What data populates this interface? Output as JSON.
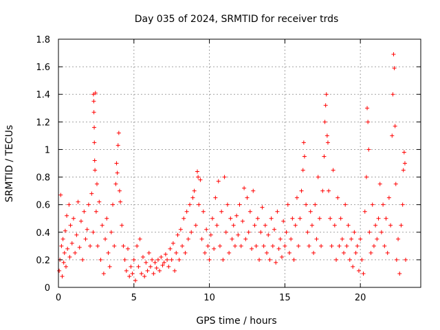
{
  "chart_data": {
    "type": "scatter",
    "title": "Day 035 of 2024, SRMTID for receiver trds",
    "xlabel": "GPS time / hours",
    "ylabel": "SRMTID / TECUs",
    "xlim": [
      0,
      24
    ],
    "ylim": [
      0,
      1.8
    ],
    "x_ticks": [
      0,
      5,
      10,
      15,
      20
    ],
    "x_tick_labels": [
      "0",
      "5",
      "10",
      "15",
      "20"
    ],
    "y_ticks": [
      0,
      0.2,
      0.4,
      0.6,
      0.8,
      1,
      1.2,
      1.4,
      1.6,
      1.8
    ],
    "y_tick_labels": [
      "0",
      "0.2",
      "0.4",
      "0.6",
      "0.8",
      "1",
      "1.2",
      "1.4",
      "1.6",
      "1.8"
    ],
    "grid": true,
    "marker": "+",
    "marker_color": "#ff0000",
    "series": [
      {
        "name": "SRMTID",
        "points": [
          [
            0.05,
            0.12
          ],
          [
            0.1,
            0.2
          ],
          [
            0.15,
            0.67
          ],
          [
            0.2,
            0.3
          ],
          [
            0.25,
            0.08
          ],
          [
            0.3,
            0.35
          ],
          [
            0.35,
            0.18
          ],
          [
            0.4,
            0.25
          ],
          [
            0.45,
            0.41
          ],
          [
            0.5,
            0.15
          ],
          [
            0.55,
            0.52
          ],
          [
            0.6,
            0.28
          ],
          [
            0.7,
            0.6
          ],
          [
            0.75,
            0.22
          ],
          [
            0.8,
            0.45
          ],
          [
            0.9,
            0.32
          ],
          [
            1.0,
            0.5
          ],
          [
            1.1,
            0.25
          ],
          [
            1.2,
            0.38
          ],
          [
            1.3,
            0.62
          ],
          [
            1.4,
            0.29
          ],
          [
            1.5,
            0.48
          ],
          [
            1.6,
            0.2
          ],
          [
            1.7,
            0.55
          ],
          [
            1.8,
            0.35
          ],
          [
            1.9,
            0.42
          ],
          [
            2.0,
            0.6
          ],
          [
            2.1,
            0.3
          ],
          [
            2.2,
            0.68
          ],
          [
            2.3,
            0.4
          ],
          [
            2.32,
            1.4
          ],
          [
            2.34,
            1.35
          ],
          [
            2.35,
            1.27
          ],
          [
            2.37,
            1.16
          ],
          [
            2.38,
            1.05
          ],
          [
            2.4,
            0.92
          ],
          [
            2.42,
            0.85
          ],
          [
            2.45,
            1.41
          ],
          [
            2.5,
            0.55
          ],
          [
            2.55,
            0.75
          ],
          [
            2.6,
            0.3
          ],
          [
            2.7,
            0.62
          ],
          [
            2.8,
            0.2
          ],
          [
            2.9,
            0.45
          ],
          [
            3.0,
            0.1
          ],
          [
            3.1,
            0.35
          ],
          [
            3.2,
            0.5
          ],
          [
            3.3,
            0.25
          ],
          [
            3.4,
            0.15
          ],
          [
            3.5,
            0.4
          ],
          [
            3.6,
            0.6
          ],
          [
            3.7,
            0.3
          ],
          [
            3.8,
            0.75
          ],
          [
            3.85,
            0.9
          ],
          [
            3.9,
            0.83
          ],
          [
            3.95,
            1.03
          ],
          [
            4.0,
            1.12
          ],
          [
            4.05,
            0.7
          ],
          [
            4.1,
            0.62
          ],
          [
            4.2,
            0.45
          ],
          [
            4.3,
            0.3
          ],
          [
            4.4,
            0.2
          ],
          [
            4.5,
            0.12
          ],
          [
            4.6,
            0.28
          ],
          [
            4.7,
            0.08
          ],
          [
            4.8,
            0.15
          ],
          [
            4.9,
            0.1
          ],
          [
            5.0,
            0.2
          ],
          [
            5.1,
            0.05
          ],
          [
            5.2,
            0.3
          ],
          [
            5.3,
            0.15
          ],
          [
            5.4,
            0.35
          ],
          [
            5.5,
            0.1
          ],
          [
            5.6,
            0.22
          ],
          [
            5.7,
            0.08
          ],
          [
            5.8,
            0.18
          ],
          [
            5.9,
            0.12
          ],
          [
            6.0,
            0.25
          ],
          [
            6.1,
            0.15
          ],
          [
            6.2,
            0.2
          ],
          [
            6.3,
            0.1
          ],
          [
            6.4,
            0.18
          ],
          [
            6.5,
            0.14
          ],
          [
            6.6,
            0.2
          ],
          [
            6.7,
            0.12
          ],
          [
            6.8,
            0.22
          ],
          [
            6.9,
            0.16
          ],
          [
            7.0,
            0.18
          ],
          [
            7.1,
            0.24
          ],
          [
            7.2,
            0.2
          ],
          [
            7.3,
            0.15
          ],
          [
            7.4,
            0.28
          ],
          [
            7.5,
            0.2
          ],
          [
            7.6,
            0.32
          ],
          [
            7.7,
            0.12
          ],
          [
            7.8,
            0.25
          ],
          [
            7.9,
            0.38
          ],
          [
            8.0,
            0.2
          ],
          [
            8.1,
            0.42
          ],
          [
            8.2,
            0.3
          ],
          [
            8.3,
            0.5
          ],
          [
            8.4,
            0.25
          ],
          [
            8.5,
            0.55
          ],
          [
            8.6,
            0.35
          ],
          [
            8.7,
            0.6
          ],
          [
            8.8,
            0.4
          ],
          [
            8.9,
            0.65
          ],
          [
            9.0,
            0.7
          ],
          [
            9.1,
            0.45
          ],
          [
            9.2,
            0.84
          ],
          [
            9.25,
            0.8
          ],
          [
            9.3,
            0.6
          ],
          [
            9.4,
            0.78
          ],
          [
            9.5,
            0.35
          ],
          [
            9.6,
            0.55
          ],
          [
            9.7,
            0.25
          ],
          [
            9.8,
            0.42
          ],
          [
            9.9,
            0.3
          ],
          [
            10.0,
            0.2
          ],
          [
            10.1,
            0.38
          ],
          [
            10.2,
            0.5
          ],
          [
            10.3,
            0.28
          ],
          [
            10.4,
            0.65
          ],
          [
            10.5,
            0.45
          ],
          [
            10.6,
            0.77
          ],
          [
            10.7,
            0.3
          ],
          [
            10.8,
            0.55
          ],
          [
            10.9,
            0.2
          ],
          [
            11.0,
            0.8
          ],
          [
            11.1,
            0.4
          ],
          [
            11.2,
            0.6
          ],
          [
            11.3,
            0.25
          ],
          [
            11.4,
            0.5
          ],
          [
            11.5,
            0.35
          ],
          [
            11.6,
            0.45
          ],
          [
            11.7,
            0.3
          ],
          [
            11.8,
            0.52
          ],
          [
            11.9,
            0.38
          ],
          [
            12.0,
            0.6
          ],
          [
            12.1,
            0.3
          ],
          [
            12.2,
            0.48
          ],
          [
            12.3,
            0.72
          ],
          [
            12.4,
            0.35
          ],
          [
            12.5,
            0.65
          ],
          [
            12.6,
            0.4
          ],
          [
            12.7,
            0.55
          ],
          [
            12.8,
            0.28
          ],
          [
            12.9,
            0.7
          ],
          [
            13.0,
            0.45
          ],
          [
            13.1,
            0.3
          ],
          [
            13.2,
            0.5
          ],
          [
            13.3,
            0.2
          ],
          [
            13.4,
            0.4
          ],
          [
            13.5,
            0.58
          ],
          [
            13.6,
            0.3
          ],
          [
            13.7,
            0.45
          ],
          [
            13.8,
            0.25
          ],
          [
            13.9,
            0.38
          ],
          [
            14.0,
            0.2
          ],
          [
            14.1,
            0.5
          ],
          [
            14.2,
            0.3
          ],
          [
            14.3,
            0.42
          ],
          [
            14.4,
            0.18
          ],
          [
            14.5,
            0.55
          ],
          [
            14.6,
            0.28
          ],
          [
            14.7,
            0.35
          ],
          [
            14.8,
            0.22
          ],
          [
            14.9,
            0.48
          ],
          [
            15.0,
            0.3
          ],
          [
            15.1,
            0.4
          ],
          [
            15.2,
            0.6
          ],
          [
            15.3,
            0.25
          ],
          [
            15.4,
            0.35
          ],
          [
            15.5,
            0.5
          ],
          [
            15.6,
            0.2
          ],
          [
            15.7,
            0.45
          ],
          [
            15.8,
            0.65
          ],
          [
            15.9,
            0.3
          ],
          [
            16.0,
            0.5
          ],
          [
            16.1,
            0.7
          ],
          [
            16.2,
            0.85
          ],
          [
            16.25,
            1.05
          ],
          [
            16.3,
            0.95
          ],
          [
            16.4,
            0.6
          ],
          [
            16.5,
            0.4
          ],
          [
            16.6,
            0.3
          ],
          [
            16.7,
            0.55
          ],
          [
            16.8,
            0.45
          ],
          [
            16.9,
            0.25
          ],
          [
            17.0,
            0.6
          ],
          [
            17.1,
            0.35
          ],
          [
            17.2,
            0.8
          ],
          [
            17.3,
            0.5
          ],
          [
            17.4,
            0.3
          ],
          [
            17.5,
            0.7
          ],
          [
            17.6,
            0.95
          ],
          [
            17.65,
            1.2
          ],
          [
            17.7,
            1.32
          ],
          [
            17.75,
            1.4
          ],
          [
            17.8,
            1.1
          ],
          [
            17.85,
            1.05
          ],
          [
            17.9,
            0.7
          ],
          [
            18.0,
            0.5
          ],
          [
            18.1,
            0.3
          ],
          [
            18.2,
            0.85
          ],
          [
            18.3,
            0.45
          ],
          [
            18.4,
            0.2
          ],
          [
            18.5,
            0.65
          ],
          [
            18.6,
            0.3
          ],
          [
            18.7,
            0.5
          ],
          [
            18.8,
            0.35
          ],
          [
            18.9,
            0.25
          ],
          [
            19.0,
            0.6
          ],
          [
            19.1,
            0.3
          ],
          [
            19.2,
            0.45
          ],
          [
            19.3,
            0.2
          ],
          [
            19.4,
            0.35
          ],
          [
            19.5,
            0.15
          ],
          [
            19.6,
            0.4
          ],
          [
            19.7,
            0.25
          ],
          [
            19.8,
            0.3
          ],
          [
            19.9,
            0.12
          ],
          [
            20.0,
            0.35
          ],
          [
            20.1,
            0.2
          ],
          [
            20.2,
            0.1
          ],
          [
            20.3,
            0.55
          ],
          [
            20.4,
            0.8
          ],
          [
            20.45,
            1.3
          ],
          [
            20.5,
            1.2
          ],
          [
            20.55,
            1.0
          ],
          [
            20.6,
            0.4
          ],
          [
            20.7,
            0.25
          ],
          [
            20.8,
            0.6
          ],
          [
            20.9,
            0.3
          ],
          [
            21.0,
            0.45
          ],
          [
            21.1,
            0.35
          ],
          [
            21.2,
            0.5
          ],
          [
            21.3,
            0.75
          ],
          [
            21.4,
            0.4
          ],
          [
            21.5,
            0.6
          ],
          [
            21.6,
            0.3
          ],
          [
            21.7,
            0.5
          ],
          [
            21.8,
            0.25
          ],
          [
            21.9,
            0.65
          ],
          [
            22.0,
            0.45
          ],
          [
            22.1,
            1.1
          ],
          [
            22.15,
            1.4
          ],
          [
            22.2,
            1.69
          ],
          [
            22.25,
            1.59
          ],
          [
            22.3,
            1.17
          ],
          [
            22.35,
            0.75
          ],
          [
            22.4,
            0.2
          ],
          [
            22.5,
            0.35
          ],
          [
            22.6,
            0.1
          ],
          [
            22.7,
            0.45
          ],
          [
            22.8,
            0.6
          ],
          [
            22.85,
            0.85
          ],
          [
            22.9,
            0.98
          ],
          [
            22.95,
            0.9
          ],
          [
            23.0,
            0.2
          ]
        ]
      }
    ]
  }
}
